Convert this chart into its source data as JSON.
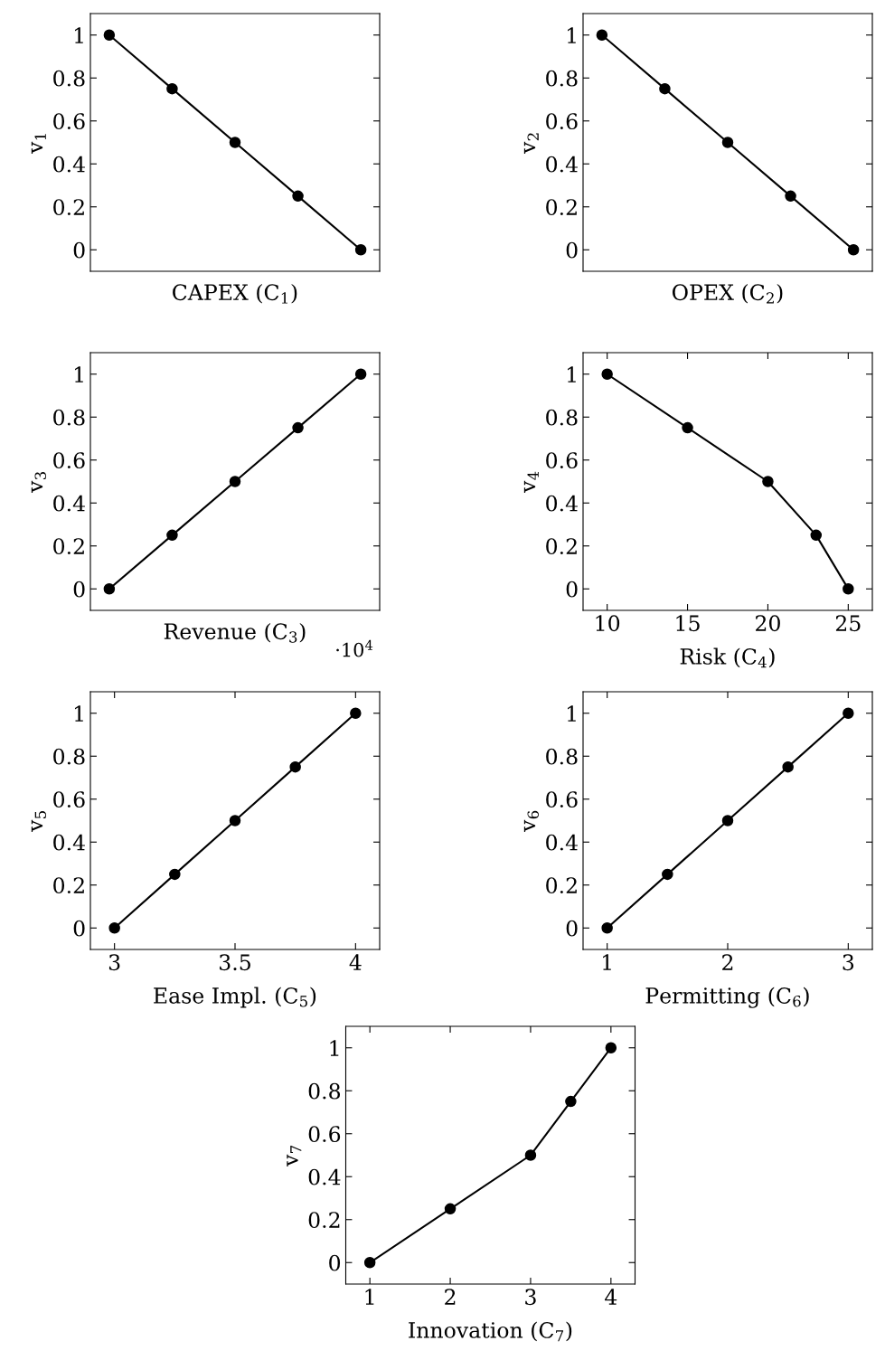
{
  "chart_data": [
    {
      "type": "line",
      "categories": [
        null,
        null,
        null,
        null,
        null
      ],
      "series": [
        {
          "color": "#000000",
          "values": [
            1,
            0.75,
            0.5,
            0.25,
            0
          ]
        }
      ],
      "ylim": [
        -0.1,
        1.1
      ],
      "yticks": [
        0,
        0.2,
        0.4,
        0.6,
        0.8,
        1
      ],
      "xlabel": "CAPEX (C$_{1}$)",
      "ylabel": "v$_{1}$",
      "tick_labels": "y",
      "marker": "circle",
      "line_style": "solid"
    },
    {
      "type": "line",
      "categories": [
        null,
        null,
        null,
        null,
        null
      ],
      "series": [
        {
          "color": "#000000",
          "values": [
            1,
            0.75,
            0.5,
            0.25,
            0
          ]
        }
      ],
      "ylim": [
        -0.1,
        1.1
      ],
      "yticks": [
        0,
        0.2,
        0.4,
        0.6,
        0.8,
        1
      ],
      "xlabel": "OPEX (C$_{2}$)",
      "ylabel": "v$_{2}$",
      "tick_labels": "y",
      "marker": "circle",
      "line_style": "solid"
    },
    {
      "type": "line",
      "categories": [
        null,
        null,
        null,
        null,
        null
      ],
      "series": [
        {
          "color": "#000000",
          "values": [
            0,
            0.25,
            0.5,
            0.75,
            1
          ]
        }
      ],
      "ylim": [
        -0.1,
        1.1
      ],
      "yticks": [
        0,
        0.2,
        0.4,
        0.6,
        0.8,
        1
      ],
      "xlabel": "Revenue (C$_{3}$)",
      "ylabel": "v$_{3}$",
      "tick_labels": "y",
      "marker": "circle",
      "line_style": "solid",
      "annotations": [
        "·10$^{4}$"
      ]
    },
    {
      "type": "line",
      "x": [
        10,
        15,
        20,
        23,
        25
      ],
      "series": [
        {
          "color": "#000000",
          "values": [
            1,
            0.75,
            0.5,
            0.25,
            0
          ]
        }
      ],
      "xlim": [
        8.5,
        26.5
      ],
      "xticks": [
        10,
        15,
        20,
        25
      ],
      "ylim": [
        -0.1,
        1.1
      ],
      "yticks": [
        0,
        0.2,
        0.4,
        0.6,
        0.8,
        1
      ],
      "xlabel": "Risk (C$_{4}$)",
      "ylabel": "v$_{4}$",
      "marker": "circle",
      "line_style": "solid"
    },
    {
      "type": "line",
      "x": [
        3,
        3.25,
        3.5,
        3.75,
        4
      ],
      "series": [
        {
          "color": "#000000",
          "values": [
            0,
            0.25,
            0.5,
            0.75,
            1
          ]
        }
      ],
      "xlim": [
        2.9,
        4.1
      ],
      "xticks": [
        3,
        3.5,
        4
      ],
      "ylim": [
        -0.1,
        1.1
      ],
      "yticks": [
        0,
        0.2,
        0.4,
        0.6,
        0.8,
        1
      ],
      "xlabel": "Ease Impl. (C$_{5}$)",
      "ylabel": "v$_{5}$",
      "marker": "circle",
      "line_style": "solid"
    },
    {
      "type": "line",
      "x": [
        1,
        1.5,
        2,
        2.5,
        3
      ],
      "series": [
        {
          "color": "#000000",
          "values": [
            0,
            0.25,
            0.5,
            0.75,
            1
          ]
        }
      ],
      "xlim": [
        0.8,
        3.2
      ],
      "xticks": [
        1,
        2,
        3
      ],
      "ylim": [
        -0.1,
        1.1
      ],
      "yticks": [
        0,
        0.2,
        0.4,
        0.6,
        0.8,
        1
      ],
      "xlabel": "Permitting (C$_{6}$)",
      "ylabel": "v$_{6}$",
      "marker": "circle",
      "line_style": "solid"
    },
    {
      "type": "line",
      "x": [
        1,
        2,
        3,
        3.5,
        4
      ],
      "series": [
        {
          "color": "#000000",
          "values": [
            0,
            0.25,
            0.5,
            0.75,
            1
          ]
        }
      ],
      "xlim": [
        0.7,
        4.3
      ],
      "xticks": [
        1,
        2,
        3,
        4
      ],
      "ylim": [
        -0.1,
        1.1
      ],
      "yticks": [
        0,
        0.2,
        0.4,
        0.6,
        0.8,
        1
      ],
      "xlabel": "Innovation (C$_{7}$)",
      "ylabel": "v$_{7}$",
      "marker": "circle",
      "line_style": "solid"
    }
  ]
}
